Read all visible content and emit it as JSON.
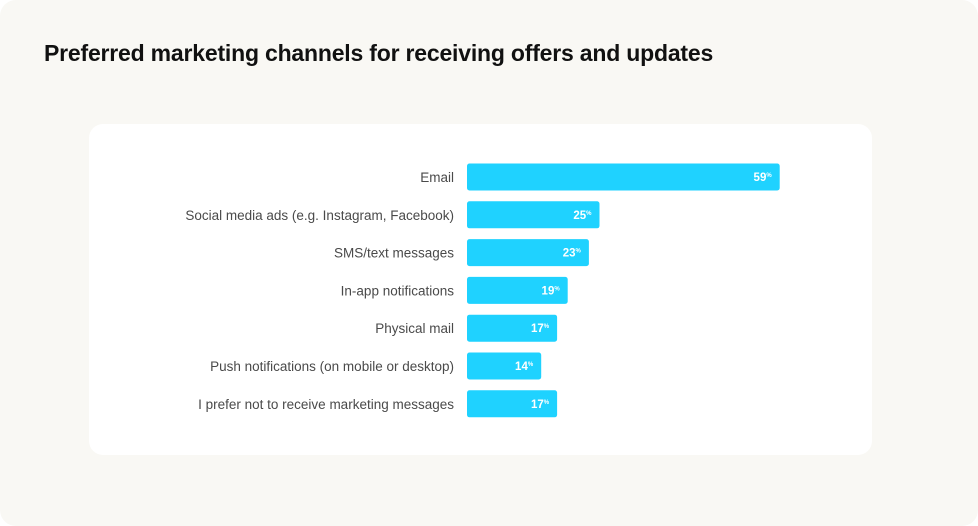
{
  "title": "Preferred marketing channels for receiving offers and updates",
  "chart_data": {
    "type": "bar",
    "orientation": "horizontal",
    "title": "Preferred marketing channels for receiving offers and updates",
    "categories": [
      "Email",
      "Social media ads (e.g. Instagram, Facebook)",
      "SMS/text messages",
      "In-app notifications",
      "Physical mail",
      "Push notifications (on mobile or desktop)",
      "I prefer not to receive marketing messages"
    ],
    "values": [
      59,
      25,
      23,
      19,
      17,
      14,
      17
    ],
    "value_suffix": "%",
    "xlim": [
      0,
      100
    ],
    "grid": false,
    "legend": "none",
    "bar_color": "#1fd2ff",
    "label_color": "#4a4a4a",
    "value_label_color": "#ffffff"
  }
}
